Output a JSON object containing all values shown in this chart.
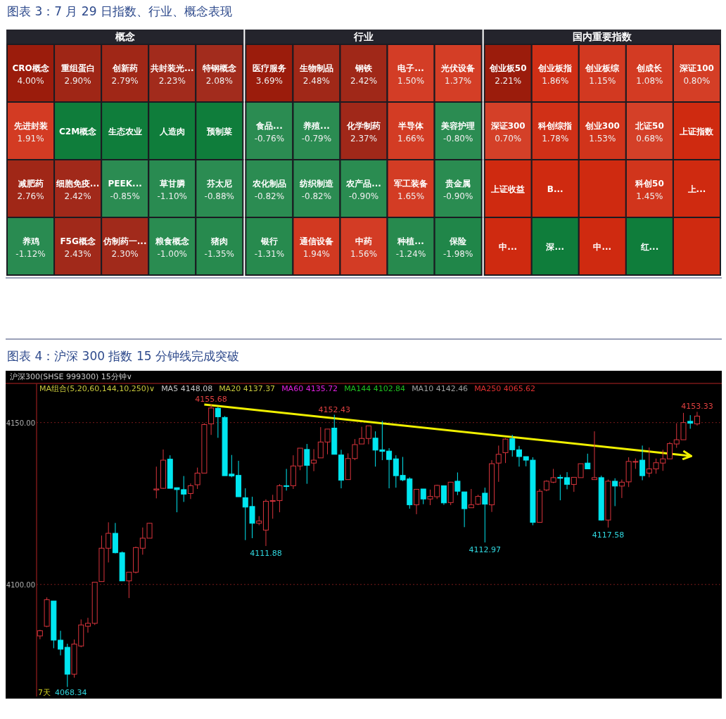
{
  "chart_data": [
    {
      "type": "other",
      "title": "概念",
      "annotations": [
        "图表 3：7 月 29 日指数、行业、概念表现"
      ],
      "categories": [
        "CRO概念",
        "重组蛋白",
        "创新药",
        "共封装光...",
        "特钢概念",
        "先进封装",
        "C2M概念",
        "生态农业",
        "人造肉",
        "预制菜",
        "减肥药",
        "细胞免疫...",
        "PEEK...",
        "草甘膦",
        "芬太尼",
        "养鸡",
        "F5G概念",
        "仿制药一...",
        "粮食概念",
        "猪肉"
      ],
      "values": [
        4.0,
        2.9,
        2.79,
        2.23,
        2.08,
        1.91,
        null,
        null,
        null,
        null,
        2.76,
        2.42,
        -0.85,
        -1.1,
        -0.88,
        -1.12,
        2.43,
        2.3,
        -1.0,
        -1.35
      ],
      "value_labels": [
        "4.00%",
        "2.90%",
        "2.79%",
        "2.23%",
        "2.08%",
        "1.91%",
        null,
        null,
        null,
        null,
        "2.76%",
        "2.42%",
        "-0.85%",
        "-1.10%",
        "-0.88%",
        "-1.12%",
        "2.43%",
        "2.30%",
        "-1.00%",
        "-1.35%"
      ],
      "colors": [
        "#9b1c0c",
        "#9b1c0c",
        "#9b1c0c",
        "#9b1c0c",
        "#9b1c0c",
        "#cf2a10",
        "#0f7d3b",
        "#0f7d3b",
        "#0f7d3b",
        "#0f7d3b",
        "#9b1c0c",
        "#9b1c0c",
        "#0f7d3b",
        "#0f7d3b",
        "#0f7d3b",
        "#0f7d3b",
        "#9b1c0c",
        "#9b1c0c",
        "#0f7d3b",
        "#0f7d3b"
      ]
    },
    {
      "type": "other",
      "title": "行业",
      "categories": [
        "医疗服务",
        "生物制品",
        "钢铁",
        "电子...",
        "光伏设备",
        "食品...",
        "养殖...",
        "化学制药",
        "半导体",
        "美容护理",
        "农化制品",
        "纺织制造",
        "农产品...",
        "军工装备",
        "贵金属",
        "银行",
        "通信设备",
        "中药",
        "种植...",
        "保险"
      ],
      "values": [
        3.69,
        2.48,
        2.42,
        1.5,
        1.37,
        -0.76,
        -0.79,
        2.37,
        1.66,
        -0.8,
        -0.82,
        -0.82,
        -0.9,
        1.65,
        -0.9,
        -1.31,
        1.94,
        1.56,
        -1.24,
        -1.98
      ],
      "value_labels": [
        "3.69%",
        "2.48%",
        "2.42%",
        "1.50%",
        "1.37%",
        "-0.76%",
        "-0.79%",
        "2.37%",
        "1.66%",
        "-0.80%",
        "-0.82%",
        "-0.82%",
        "-0.90%",
        "1.65%",
        "-0.90%",
        "-1.31%",
        "1.94%",
        "1.56%",
        "-1.24%",
        "-1.98%"
      ],
      "colors": [
        "#9b1c0c",
        "#9b1c0c",
        "#9b1c0c",
        "#cf2a10",
        "#cf2a10",
        "#0f7d3b",
        "#0f7d3b",
        "#9b1c0c",
        "#cf2a10",
        "#0f7d3b",
        "#0f7d3b",
        "#0f7d3b",
        "#0f7d3b",
        "#cf2a10",
        "#0f7d3b",
        "#0f7d3b",
        "#cf2a10",
        "#cf2a10",
        "#0f7d3b",
        "#0f7d3b"
      ]
    },
    {
      "type": "other",
      "title": "国内重要指数",
      "categories": [
        "创业板50",
        "创业板指",
        "创业板综",
        "创成长",
        "深证100",
        "深证300",
        "科创综指",
        "创业300",
        "北证50",
        "上证指数",
        "上证收益",
        "B...",
        null,
        "科创50",
        "上...",
        "中...",
        "深...",
        "中...",
        "红...",
        null
      ],
      "values": [
        2.21,
        1.86,
        1.15,
        1.08,
        0.8,
        0.7,
        1.78,
        1.53,
        0.68,
        null,
        null,
        null,
        null,
        1.45,
        null,
        null,
        null,
        null,
        null,
        null
      ],
      "value_labels": [
        "2.21%",
        "1.86%",
        "1.15%",
        "1.08%",
        "0.80%",
        "0.70%",
        "1.78%",
        "1.53%",
        "0.68%",
        null,
        null,
        null,
        null,
        "1.45%",
        null,
        null,
        null,
        null,
        null,
        null
      ],
      "colors": [
        "#9b1c0c",
        "#cf2a10",
        "#cf2a10",
        "#cf2a10",
        "#cf2a10",
        "#cf2a10",
        "#cf2a10",
        "#cf2a10",
        "#cf2a10",
        "#cf2a10",
        "#cf2a10",
        "#cf2a10",
        "#cf2a10",
        "#cf2a10",
        "#cf2a10",
        "#cf2a10",
        "#0f7d3b",
        "#cf2a10",
        "#0f7d3b",
        "#cf2a10"
      ]
    },
    {
      "type": "candlestick",
      "title": "图表 4：沪深 300 指数 15 分钟线完成突破",
      "subtitle": "沪深300(SHSE 999300)  15分钟∨",
      "xlabel": "7天",
      "categories": [
        null,
        null,
        null,
        null,
        null,
        null,
        null,
        null,
        null,
        null,
        null,
        null,
        null,
        null,
        null,
        null,
        null,
        null,
        null,
        null,
        null,
        null,
        null,
        null,
        null,
        null,
        null,
        null,
        null,
        null,
        null,
        null,
        null,
        null,
        null,
        null,
        null,
        null,
        null,
        null,
        null,
        null,
        null,
        null,
        null,
        null,
        null,
        null,
        null,
        null,
        null,
        null,
        null,
        null,
        null,
        null,
        null,
        null,
        null,
        null,
        null,
        null,
        null,
        null,
        null,
        null,
        null,
        null,
        null,
        null,
        null,
        null,
        null,
        null,
        null,
        null,
        null,
        null,
        null,
        null,
        null,
        null,
        null,
        null,
        null,
        null,
        null,
        null,
        null,
        null,
        null,
        null,
        null,
        null,
        null,
        null,
        null
      ],
      "ohlc": [
        [
          4084.1,
          4086.0,
          4083.1,
          4085.7
        ],
        [
          4087.1,
          4096.0,
          4086.8,
          4095.3
        ],
        [
          4094.9,
          4094.9,
          4080.3,
          4082.8
        ],
        [
          4082.8,
          4085.7,
          4078.1,
          4080.0
        ],
        [
          4080.6,
          4081.7,
          4068.34,
          4072.3
        ],
        [
          4072.3,
          4083.0,
          4071.2,
          4081.6
        ],
        [
          4081.0,
          4089.2,
          4080.6,
          4087.5
        ],
        [
          4087.1,
          4089.7,
          4085.1,
          4088.0
        ],
        [
          4088.0,
          4100.7,
          4087.5,
          4100.7
        ],
        [
          4100.9,
          4115.1,
          4100.9,
          4111.2
        ],
        [
          4111.2,
          4119.2,
          4106.8,
          4115.8
        ],
        [
          4115.8,
          4119.0,
          4109.6,
          4109.8
        ],
        [
          4109.8,
          4110.2,
          4101.1,
          4101.1
        ],
        [
          4101.1,
          4103.8,
          4095.8,
          4103.8
        ],
        [
          4103.8,
          4111.7,
          4103.4,
          4111.4
        ],
        [
          4111.2,
          4117.6,
          4109.2,
          4114.3
        ],
        [
          4114.3,
          4119.0,
          4114.3,
          4118.9
        ],
        [
          4129.2,
          4136.4,
          4126.6,
          4129.5
        ],
        [
          4129.7,
          4141.7,
          4129.5,
          4138.4
        ],
        [
          4138.7,
          4139.9,
          4129.7,
          4129.7
        ],
        [
          4129.9,
          4129.9,
          4122.3,
          4129.3
        ],
        [
          4129.3,
          4133.5,
          4125.5,
          4127.9
        ],
        [
          4128.1,
          4131.2,
          4126.4,
          4130.5
        ],
        [
          4130.8,
          4136.1,
          4129.5,
          4134.4
        ],
        [
          4134.4,
          4149.8,
          4134.4,
          4149.4
        ],
        [
          4149.6,
          4155.68,
          4146.2,
          4154.5
        ],
        [
          4154.4,
          4154.9,
          4145.3,
          4151.8
        ],
        [
          4151.6,
          4152.0,
          4133.6,
          4133.6
        ],
        [
          4134.1,
          4140.0,
          4133.1,
          4133.5
        ],
        [
          4133.7,
          4138.2,
          4127.1,
          4127.1
        ],
        [
          4126.8,
          4129.7,
          4113.7,
          4123.9
        ],
        [
          4124.1,
          4127.1,
          4114.3,
          4118.9
        ],
        [
          4118.9,
          4121.1,
          4118.3,
          4119.6
        ],
        [
          4116.8,
          4126.3,
          4111.88,
          4125.7
        ],
        [
          4125.7,
          4127.7,
          4120.3,
          4125.9
        ],
        [
          4125.9,
          4131.0,
          4122.3,
          4130.5
        ],
        [
          4130.5,
          4135.7,
          4129.0,
          4130.3
        ],
        [
          4130.5,
          4139.9,
          4129.5,
          4136.6
        ],
        [
          4136.6,
          4142.1,
          4135.3,
          4142.1
        ],
        [
          4141.7,
          4143.4,
          4131.1,
          4136.8
        ],
        [
          4137.5,
          4141.8,
          4135.0,
          4138.4
        ],
        [
          4139.1,
          4148.6,
          4139.1,
          4144.0
        ],
        [
          4144.0,
          4148.0,
          4140.2,
          4148.0
        ],
        [
          4148.3,
          4152.43,
          4140.2,
          4140.2
        ],
        [
          4140.0,
          4141.6,
          4129.7,
          4132.2
        ],
        [
          4132.4,
          4140.5,
          4132.4,
          4138.9
        ],
        [
          4138.9,
          4144.9,
          4138.4,
          4143.2
        ],
        [
          4143.4,
          4148.7,
          4143.4,
          4145.1
        ],
        [
          4145.1,
          4149.0,
          4143.3,
          4149.0
        ],
        [
          4145.2,
          4147.3,
          4136.4,
          4141.5
        ],
        [
          4141.6,
          4150.5,
          4138.4,
          4141.1
        ],
        [
          4141.2,
          4142.1,
          4129.7,
          4138.6
        ],
        [
          4138.8,
          4139.9,
          4129.9,
          4133.6
        ],
        [
          4133.7,
          4139.4,
          4131.9,
          4132.3
        ],
        [
          4132.6,
          4133.1,
          4123.4,
          4124.6
        ],
        [
          4124.6,
          4129.5,
          4121.7,
          4129.4
        ],
        [
          4129.5,
          4129.5,
          4124.8,
          4126.4
        ],
        [
          4126.4,
          4129.3,
          4124.5,
          4127.2
        ],
        [
          4127.1,
          4130.8,
          4126.4,
          4130.6
        ],
        [
          4130.5,
          4130.5,
          4124.6,
          4125.2
        ],
        [
          4125.3,
          4131.7,
          4124.5,
          4131.6
        ],
        [
          4131.9,
          4134.6,
          4127.6,
          4128.8
        ],
        [
          4128.6,
          4128.6,
          4117.7,
          4123.4
        ],
        [
          4123.7,
          4129.5,
          4123.7,
          4124.6
        ],
        [
          4124.8,
          4127.7,
          4124.5,
          4127.2
        ],
        [
          4128.2,
          4129.9,
          4112.97,
          4124.8
        ],
        [
          4124.6,
          4138.4,
          4122.4,
          4137.3
        ],
        [
          4137.5,
          4142.9,
          4131.7,
          4140.2
        ],
        [
          4140.7,
          4145.2,
          4137.5,
          4144.9
        ],
        [
          4145.0,
          4146.2,
          4139.5,
          4141.6
        ],
        [
          4141.6,
          4142.8,
          4136.4,
          4139.5
        ],
        [
          4139.5,
          4139.5,
          4136.5,
          4138.4
        ],
        [
          4138.4,
          4139.3,
          4118.3,
          4119.2
        ],
        [
          4119.2,
          4129.5,
          4119.2,
          4128.8
        ],
        [
          4129.2,
          4132.2,
          4128.8,
          4131.9
        ],
        [
          4131.6,
          4135.7,
          4131.3,
          4133.0
        ],
        [
          4133.1,
          4133.9,
          4126.0,
          4132.8
        ],
        [
          4133.0,
          4134.7,
          4129.4,
          4130.9
        ],
        [
          4130.9,
          4133.1,
          4128.6,
          4133.1
        ],
        [
          4133.0,
          4137.3,
          4133.0,
          4137.3
        ],
        [
          4137.5,
          4140.4,
          4135.7,
          4135.7
        ],
        [
          4132.4,
          4147.3,
          4132.4,
          4133.0
        ],
        [
          4133.0,
          4133.6,
          4119.7,
          4119.9
        ],
        [
          4119.9,
          4132.4,
          4117.58,
          4131.9
        ],
        [
          4131.9,
          4132.8,
          4124.2,
          4130.4
        ],
        [
          4130.4,
          4132.4,
          4126.7,
          4131.6
        ],
        [
          4131.7,
          4139.3,
          4130.1,
          4138.0
        ],
        [
          4137.8,
          4138.9,
          4135.7,
          4138.0
        ],
        [
          4138.4,
          4142.9,
          4132.2,
          4133.6
        ],
        [
          4134.4,
          4142.3,
          4133.1,
          4135.7
        ],
        [
          4135.7,
          4138.9,
          4134.2,
          4137.6
        ],
        [
          4137.5,
          4141.6,
          4135.1,
          4138.8
        ],
        [
          4138.8,
          4144.0,
          4138.8,
          4143.5
        ],
        [
          4143.4,
          4149.8,
          4142.2,
          4144.7
        ],
        [
          4144.7,
          4153.0,
          4144.7,
          4150.0
        ],
        [
          4150.4,
          4152.3,
          4148.1,
          4149.8
        ],
        [
          4149.6,
          4153.33,
          4149.1,
          4152.0
        ]
      ],
      "series": [
        {
          "type": "line",
          "color": "#f0f000",
          "values": [
            null,
            null,
            null,
            null,
            null,
            null,
            null,
            null,
            null,
            null,
            null,
            null,
            null,
            null,
            null,
            null,
            null,
            null,
            null,
            null,
            null,
            null,
            null,
            null,
            4155.6,
            null,
            null,
            null,
            null,
            null,
            null,
            null,
            null,
            null,
            null,
            null,
            null,
            null,
            null,
            null,
            null,
            null,
            null,
            null,
            null,
            null,
            null,
            null,
            null,
            null,
            null,
            null,
            null,
            null,
            null,
            null,
            null,
            null,
            null,
            null,
            null,
            null,
            null,
            null,
            null,
            null,
            null,
            null,
            null,
            null,
            null,
            null,
            null,
            null,
            null,
            null,
            null,
            null,
            null,
            null,
            null,
            null,
            null,
            null,
            null,
            null,
            null,
            null,
            null,
            null,
            null,
            null,
            null,
            null,
            null,
            4139.7,
            null
          ]
        }
      ],
      "ylim": [
        4065.4,
        4162.1
      ],
      "yticks": [
        {
          "value": 4100,
          "label": "4100.00"
        },
        {
          "value": 4150,
          "label": "4150.00"
        }
      ],
      "grid": "y",
      "tick_labels": "y",
      "annotations": [
        "MA组合(5,20,60,144,10,250)∨",
        "MA5 4148.08",
        "MA20 4137.37",
        "MA60 4135.72",
        "MA144 4102.84",
        "MA10 4142.46",
        "MA250 4065.62",
        {
          "text": "4155.68",
          "y": 4155.68
        },
        {
          "text": "4152.43",
          "y": 4152.43
        },
        {
          "text": "4111.88",
          "y": 4111.88
        },
        {
          "text": "4112.97",
          "y": 4112.97
        },
        {
          "text": "4117.58",
          "y": 4117.58
        },
        {
          "text": "4153.33",
          "y": 4153.33
        },
        "4068.34"
      ]
    }
  ]
}
